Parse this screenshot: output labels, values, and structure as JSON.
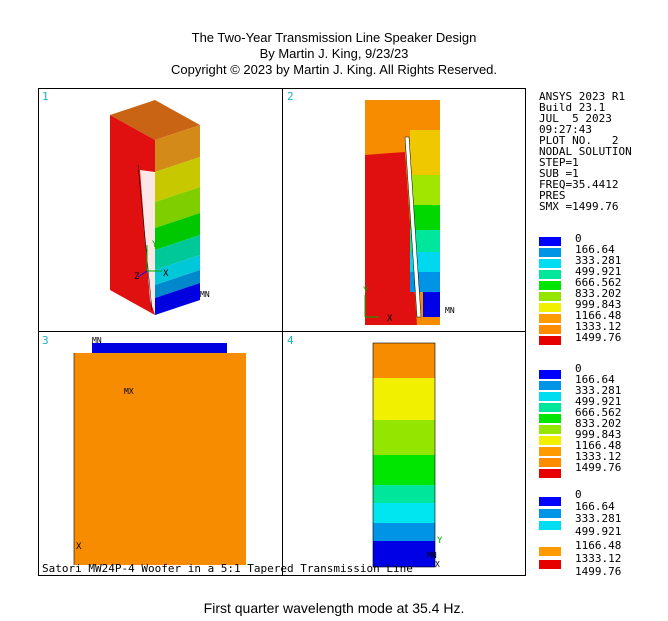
{
  "header": {
    "line1": "The Two-Year Transmission Line Speaker Design",
    "line2": "By Martin J. King, 9/23/23",
    "line3": "Copyright © 2023 by Martin J. King. All Rights Reserved."
  },
  "plots": {
    "p1": "1",
    "p2": "2",
    "p3": "3",
    "p4": "4"
  },
  "plot_tags": {
    "mn": "MN",
    "mx": "MX",
    "x": "X",
    "y": "Y",
    "z": "Z"
  },
  "info": {
    "line1": "ANSYS 2023 R1",
    "line2": "Build 23.1",
    "line3": "JUL  5 2023",
    "line4": "09:27:43",
    "line5": "PLOT NO.   2",
    "line6": "NODAL SOLUTION",
    "line7": "STEP=1",
    "line8": "SUB =1",
    "line9": "FREQ=35.4412",
    "line10": "PRES",
    "line11": "SMX =1499.76"
  },
  "legend_values": [
    "0",
    "166.64",
    "333.281",
    "499.921",
    "666.562",
    "833.202",
    "999.843",
    "1166.48",
    "1333.12",
    "1499.76"
  ],
  "legend_colors": [
    "#0000ff",
    "#0094e6",
    "#00dcf0",
    "#00e69a",
    "#00e600",
    "#94e600",
    "#f0f000",
    "#ff9a00",
    "#ff8c00",
    "#e60000"
  ],
  "legend3_values": [
    "0",
    "166.64",
    "333.281",
    "499.921",
    "1166.48",
    "1333.12",
    "1499.76"
  ],
  "subtitle": "Satori MW24P-4 Woofer in a 5:1 Tapered Transmission Line",
  "caption": "First quarter wavelength mode at 35.4 Hz.",
  "colors": {
    "orange": "#f78c00",
    "red": "#e01010",
    "yellow": "#f0f000",
    "blue": "#0000f0",
    "cyan": "#19b3c9"
  }
}
